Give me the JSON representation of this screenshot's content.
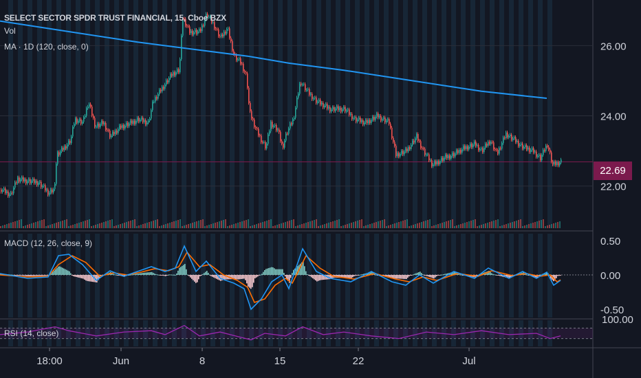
{
  "header": {
    "title": "SELECT SECTOR SPDR TRUST FINANCIAL, 15, Cboe BZX",
    "vol_label": "Vol",
    "ma_label": "MA · 1D (120, close, 0)",
    "macd_label": "MACD (12, 26, close, 9)",
    "rsi_label": "RSI (14, close)"
  },
  "last_price": "22.69",
  "colors": {
    "background": "#131722",
    "grid": "#2a2e39",
    "session_band": "#1b3347",
    "up": "#26a69a",
    "down": "#ef5350",
    "ma_line": "#2196f3",
    "macd_line": "#2196f3",
    "signal_line": "#ff6d00",
    "rsi_line": "#9c27b0",
    "last_price_bg": "#7b1a4d"
  },
  "chart_data": [
    {
      "type": "candlestick",
      "title": "SELECT SECTOR SPDR TRUST FINANCIAL, 15, Cboe BZX",
      "x_ticks": [
        "18:00",
        "Jun",
        "8",
        "15",
        "22",
        "Jul"
      ],
      "y_ticks": [
        "26.00",
        "24.00",
        "22.00"
      ],
      "ylim": [
        20.8,
        27.3
      ],
      "close_path": [
        {
          "x": 0,
          "y": 21.9
        },
        {
          "x": 15,
          "y": 21.75
        },
        {
          "x": 25,
          "y": 22.2
        },
        {
          "x": 55,
          "y": 22.1
        },
        {
          "x": 70,
          "y": 21.8
        },
        {
          "x": 78,
          "y": 21.9
        },
        {
          "x": 82,
          "y": 22.9
        },
        {
          "x": 88,
          "y": 23.0
        },
        {
          "x": 102,
          "y": 23.3
        },
        {
          "x": 108,
          "y": 23.9
        },
        {
          "x": 120,
          "y": 23.8
        },
        {
          "x": 128,
          "y": 24.4
        },
        {
          "x": 138,
          "y": 23.7
        },
        {
          "x": 150,
          "y": 23.8
        },
        {
          "x": 160,
          "y": 23.4
        },
        {
          "x": 175,
          "y": 23.7
        },
        {
          "x": 190,
          "y": 23.8
        },
        {
          "x": 200,
          "y": 23.9
        },
        {
          "x": 215,
          "y": 23.8
        },
        {
          "x": 222,
          "y": 24.4
        },
        {
          "x": 235,
          "y": 24.8
        },
        {
          "x": 250,
          "y": 25.2
        },
        {
          "x": 260,
          "y": 25.3
        },
        {
          "x": 265,
          "y": 26.8
        },
        {
          "x": 275,
          "y": 26.4
        },
        {
          "x": 290,
          "y": 26.4
        },
        {
          "x": 300,
          "y": 26.9
        },
        {
          "x": 310,
          "y": 26.6
        },
        {
          "x": 320,
          "y": 26.2
        },
        {
          "x": 330,
          "y": 26.5
        },
        {
          "x": 340,
          "y": 25.7
        },
        {
          "x": 350,
          "y": 25.5
        },
        {
          "x": 358,
          "y": 25.1
        },
        {
          "x": 362,
          "y": 24.1
        },
        {
          "x": 372,
          "y": 23.6
        },
        {
          "x": 380,
          "y": 23.3
        },
        {
          "x": 386,
          "y": 23.1
        },
        {
          "x": 393,
          "y": 23.8
        },
        {
          "x": 403,
          "y": 23.6
        },
        {
          "x": 410,
          "y": 23.1
        },
        {
          "x": 416,
          "y": 23.5
        },
        {
          "x": 426,
          "y": 23.9
        },
        {
          "x": 436,
          "y": 25.0
        },
        {
          "x": 446,
          "y": 24.7
        },
        {
          "x": 460,
          "y": 24.4
        },
        {
          "x": 480,
          "y": 24.2
        },
        {
          "x": 500,
          "y": 24.2
        },
        {
          "x": 515,
          "y": 23.9
        },
        {
          "x": 530,
          "y": 23.8
        },
        {
          "x": 548,
          "y": 24.0
        },
        {
          "x": 565,
          "y": 23.8
        },
        {
          "x": 575,
          "y": 22.9
        },
        {
          "x": 590,
          "y": 23.0
        },
        {
          "x": 605,
          "y": 23.4
        },
        {
          "x": 615,
          "y": 23.0
        },
        {
          "x": 628,
          "y": 22.6
        },
        {
          "x": 645,
          "y": 22.8
        },
        {
          "x": 660,
          "y": 22.9
        },
        {
          "x": 675,
          "y": 23.1
        },
        {
          "x": 690,
          "y": 23.2
        },
        {
          "x": 700,
          "y": 23.0
        },
        {
          "x": 712,
          "y": 23.3
        },
        {
          "x": 722,
          "y": 22.9
        },
        {
          "x": 735,
          "y": 23.5
        },
        {
          "x": 748,
          "y": 23.3
        },
        {
          "x": 760,
          "y": 23.1
        },
        {
          "x": 775,
          "y": 23.0
        },
        {
          "x": 785,
          "y": 22.8
        },
        {
          "x": 795,
          "y": 23.2
        },
        {
          "x": 803,
          "y": 22.6
        },
        {
          "x": 815,
          "y": 22.69
        }
      ],
      "ma_path": [
        {
          "x": 0,
          "y": 26.7
        },
        {
          "x": 100,
          "y": 26.4
        },
        {
          "x": 200,
          "y": 26.1
        },
        {
          "x": 300,
          "y": 25.85
        },
        {
          "x": 360,
          "y": 25.7
        },
        {
          "x": 420,
          "y": 25.5
        },
        {
          "x": 500,
          "y": 25.3
        },
        {
          "x": 600,
          "y": 25.0
        },
        {
          "x": 700,
          "y": 24.7
        },
        {
          "x": 795,
          "y": 24.5
        }
      ],
      "last_price": 22.69
    },
    {
      "type": "line",
      "title": "MACD (12, 26, close, 9)",
      "y_ticks": [
        "0.50",
        "0.00",
        "-0.50"
      ],
      "ylim": [
        -0.62,
        0.6
      ],
      "macd_path": [
        {
          "x": 0,
          "y": 0.02
        },
        {
          "x": 40,
          "y": -0.05
        },
        {
          "x": 70,
          "y": -0.03
        },
        {
          "x": 85,
          "y": 0.28
        },
        {
          "x": 100,
          "y": 0.3
        },
        {
          "x": 120,
          "y": 0.15
        },
        {
          "x": 140,
          "y": -0.08
        },
        {
          "x": 160,
          "y": 0.06
        },
        {
          "x": 180,
          "y": -0.02
        },
        {
          "x": 200,
          "y": 0.05
        },
        {
          "x": 220,
          "y": 0.12
        },
        {
          "x": 240,
          "y": 0.05
        },
        {
          "x": 255,
          "y": 0.1
        },
        {
          "x": 268,
          "y": 0.42
        },
        {
          "x": 285,
          "y": 0.05
        },
        {
          "x": 300,
          "y": 0.2
        },
        {
          "x": 320,
          "y": -0.05
        },
        {
          "x": 340,
          "y": -0.12
        },
        {
          "x": 355,
          "y": -0.2
        },
        {
          "x": 365,
          "y": -0.5
        },
        {
          "x": 380,
          "y": -0.35
        },
        {
          "x": 395,
          "y": -0.1
        },
        {
          "x": 410,
          "y": 0.0
        },
        {
          "x": 420,
          "y": -0.2
        },
        {
          "x": 440,
          "y": 0.38
        },
        {
          "x": 460,
          "y": 0.05
        },
        {
          "x": 480,
          "y": -0.05
        },
        {
          "x": 510,
          "y": -0.1
        },
        {
          "x": 540,
          "y": 0.05
        },
        {
          "x": 570,
          "y": -0.1
        },
        {
          "x": 590,
          "y": -0.15
        },
        {
          "x": 610,
          "y": 0.0
        },
        {
          "x": 630,
          "y": -0.12
        },
        {
          "x": 660,
          "y": 0.05
        },
        {
          "x": 690,
          "y": -0.05
        },
        {
          "x": 710,
          "y": 0.1
        },
        {
          "x": 740,
          "y": -0.05
        },
        {
          "x": 760,
          "y": 0.05
        },
        {
          "x": 780,
          "y": -0.05
        },
        {
          "x": 795,
          "y": 0.04
        },
        {
          "x": 805,
          "y": -0.15
        },
        {
          "x": 815,
          "y": -0.08
        }
      ],
      "signal_path": [
        {
          "x": 0,
          "y": 0.0
        },
        {
          "x": 40,
          "y": -0.03
        },
        {
          "x": 70,
          "y": -0.02
        },
        {
          "x": 85,
          "y": 0.15
        },
        {
          "x": 105,
          "y": 0.28
        },
        {
          "x": 125,
          "y": 0.18
        },
        {
          "x": 145,
          "y": -0.02
        },
        {
          "x": 165,
          "y": 0.03
        },
        {
          "x": 185,
          "y": 0.0
        },
        {
          "x": 205,
          "y": 0.04
        },
        {
          "x": 225,
          "y": 0.09
        },
        {
          "x": 245,
          "y": 0.06
        },
        {
          "x": 260,
          "y": 0.12
        },
        {
          "x": 272,
          "y": 0.33
        },
        {
          "x": 290,
          "y": 0.12
        },
        {
          "x": 305,
          "y": 0.15
        },
        {
          "x": 325,
          "y": 0.0
        },
        {
          "x": 345,
          "y": -0.08
        },
        {
          "x": 360,
          "y": -0.18
        },
        {
          "x": 370,
          "y": -0.4
        },
        {
          "x": 385,
          "y": -0.35
        },
        {
          "x": 400,
          "y": -0.15
        },
        {
          "x": 415,
          "y": -0.05
        },
        {
          "x": 425,
          "y": -0.12
        },
        {
          "x": 445,
          "y": 0.28
        },
        {
          "x": 465,
          "y": 0.1
        },
        {
          "x": 485,
          "y": -0.02
        },
        {
          "x": 515,
          "y": -0.06
        },
        {
          "x": 545,
          "y": 0.02
        },
        {
          "x": 575,
          "y": -0.06
        },
        {
          "x": 595,
          "y": -0.1
        },
        {
          "x": 615,
          "y": -0.03
        },
        {
          "x": 635,
          "y": -0.08
        },
        {
          "x": 665,
          "y": 0.02
        },
        {
          "x": 695,
          "y": -0.02
        },
        {
          "x": 715,
          "y": 0.06
        },
        {
          "x": 745,
          "y": -0.01
        },
        {
          "x": 765,
          "y": 0.02
        },
        {
          "x": 785,
          "y": -0.02
        },
        {
          "x": 800,
          "y": 0.0
        },
        {
          "x": 810,
          "y": -0.1
        },
        {
          "x": 815,
          "y": -0.07
        }
      ]
    },
    {
      "type": "line",
      "title": "RSI (14, close)",
      "y_ticks": [
        "100.00"
      ],
      "ylim": [
        0,
        100
      ],
      "rsi_path": [
        {
          "x": 0,
          "y": 45
        },
        {
          "x": 40,
          "y": 55
        },
        {
          "x": 80,
          "y": 75
        },
        {
          "x": 100,
          "y": 60
        },
        {
          "x": 140,
          "y": 40
        },
        {
          "x": 180,
          "y": 55
        },
        {
          "x": 220,
          "y": 60
        },
        {
          "x": 240,
          "y": 45
        },
        {
          "x": 268,
          "y": 80
        },
        {
          "x": 290,
          "y": 40
        },
        {
          "x": 320,
          "y": 55
        },
        {
          "x": 350,
          "y": 35
        },
        {
          "x": 365,
          "y": 25
        },
        {
          "x": 385,
          "y": 50
        },
        {
          "x": 415,
          "y": 40
        },
        {
          "x": 440,
          "y": 75
        },
        {
          "x": 470,
          "y": 45
        },
        {
          "x": 500,
          "y": 55
        },
        {
          "x": 540,
          "y": 40
        },
        {
          "x": 580,
          "y": 30
        },
        {
          "x": 620,
          "y": 55
        },
        {
          "x": 660,
          "y": 45
        },
        {
          "x": 700,
          "y": 60
        },
        {
          "x": 740,
          "y": 45
        },
        {
          "x": 780,
          "y": 50
        },
        {
          "x": 800,
          "y": 30
        },
        {
          "x": 815,
          "y": 40
        }
      ]
    }
  ]
}
